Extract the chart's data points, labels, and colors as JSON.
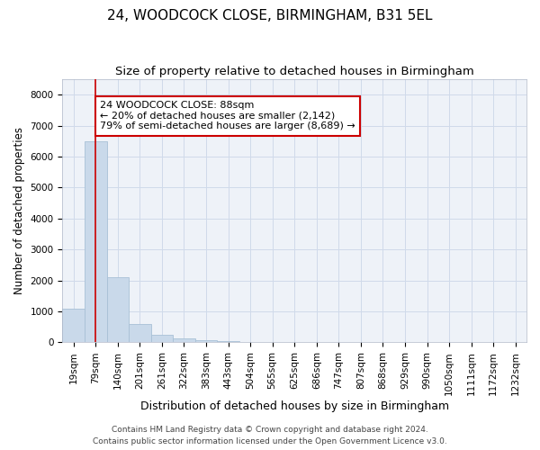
{
  "title1": "24, WOODCOCK CLOSE, BIRMINGHAM, B31 5EL",
  "title2": "Size of property relative to detached houses in Birmingham",
  "xlabel": "Distribution of detached houses by size in Birmingham",
  "ylabel": "Number of detached properties",
  "categories": [
    "19sqm",
    "79sqm",
    "140sqm",
    "201sqm",
    "261sqm",
    "322sqm",
    "383sqm",
    "443sqm",
    "504sqm",
    "565sqm",
    "625sqm",
    "686sqm",
    "747sqm",
    "807sqm",
    "868sqm",
    "929sqm",
    "990sqm",
    "1050sqm",
    "1111sqm",
    "1172sqm",
    "1232sqm"
  ],
  "values": [
    1100,
    6500,
    2100,
    600,
    250,
    130,
    60,
    40,
    0,
    0,
    0,
    0,
    0,
    0,
    0,
    0,
    0,
    0,
    0,
    0,
    0
  ],
  "bar_color": "#c9d9ea",
  "bar_edge_color": "#a8c0d6",
  "vline_x": 1.0,
  "vline_color": "#cc0000",
  "annotation_line1": "24 WOODCOCK CLOSE: 88sqm",
  "annotation_line2": "← 20% of detached houses are smaller (2,142)",
  "annotation_line3": "79% of semi-detached houses are larger (8,689) →",
  "annotation_box_color": "#ffffff",
  "annotation_box_edge_color": "#cc0000",
  "ylim": [
    0,
    8500
  ],
  "yticks": [
    0,
    1000,
    2000,
    3000,
    4000,
    5000,
    6000,
    7000,
    8000
  ],
  "grid_color": "#d0daea",
  "bg_color": "#eef2f8",
  "footer1": "Contains HM Land Registry data © Crown copyright and database right 2024.",
  "footer2": "Contains public sector information licensed under the Open Government Licence v3.0.",
  "title1_fontsize": 11,
  "title2_fontsize": 9.5,
  "xlabel_fontsize": 9,
  "ylabel_fontsize": 8.5,
  "tick_fontsize": 7.5,
  "annotation_fontsize": 8,
  "footer_fontsize": 6.5
}
